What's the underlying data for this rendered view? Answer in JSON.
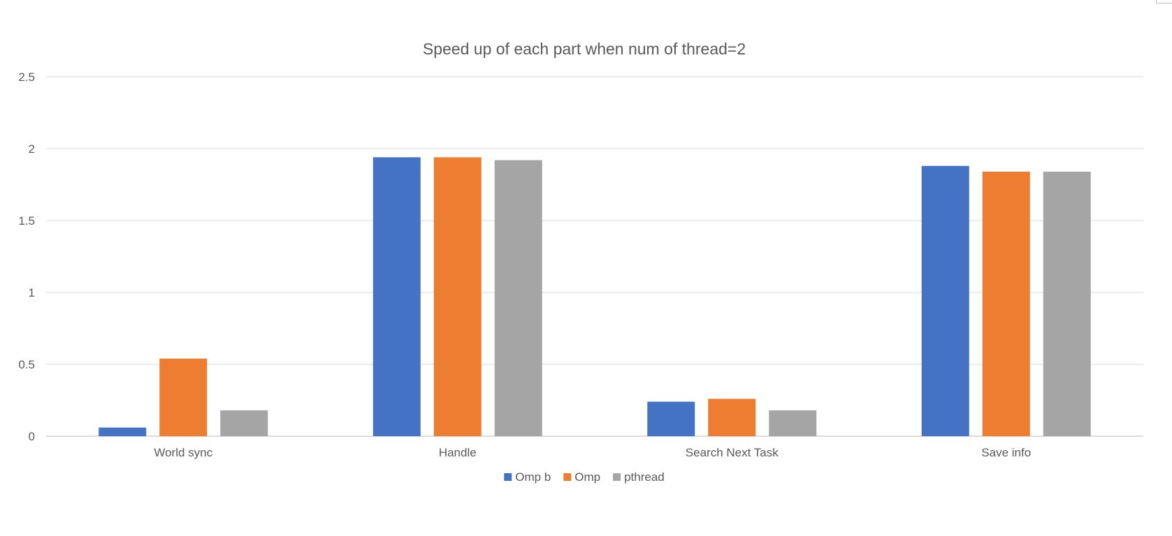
{
  "chart_data": {
    "type": "bar",
    "title": "Speed up of each part when num of thread=2",
    "categories": [
      "World sync",
      "Handle",
      "Search Next Task",
      "Save info"
    ],
    "series": [
      {
        "name": "Omp b",
        "color": "#4472C4",
        "values": [
          0.06,
          1.94,
          0.24,
          1.88
        ]
      },
      {
        "name": "Omp",
        "color": "#ED7D31",
        "values": [
          0.54,
          1.94,
          0.26,
          1.84
        ]
      },
      {
        "name": "pthread",
        "color": "#A5A5A5",
        "values": [
          0.18,
          1.92,
          0.18,
          1.84
        ]
      }
    ],
    "yticks": [
      "0",
      "0.5",
      "1",
      "1.5",
      "2",
      "2.5"
    ],
    "ylim": [
      0,
      2.5
    ],
    "grid": true,
    "legend": "bottom"
  }
}
